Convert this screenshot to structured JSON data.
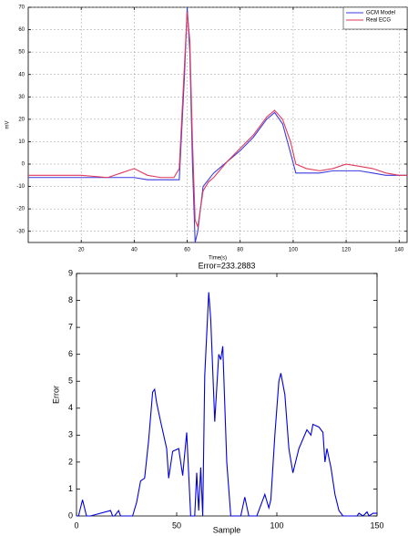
{
  "chart_data": [
    {
      "type": "line",
      "xlabel": "Time(s)",
      "ylabel": "mV",
      "x": [
        0,
        10,
        20,
        30,
        35,
        40,
        45,
        50,
        55,
        57,
        59,
        60,
        61,
        62,
        63,
        64,
        66,
        68,
        70,
        75,
        80,
        85,
        90,
        93,
        96,
        99,
        101,
        105,
        110,
        115,
        120,
        125,
        130,
        135,
        140,
        143
      ],
      "series": [
        {
          "name": "GCM Model",
          "color": "#3a3ae0",
          "values": [
            -6,
            -6,
            -6,
            -6,
            -6,
            -6,
            -7,
            -7,
            -7,
            -7,
            40,
            70,
            50,
            0,
            -35,
            -30,
            -10,
            -7,
            -4,
            1,
            6,
            12,
            20,
            23,
            18,
            5,
            -4,
            -4,
            -4,
            -3,
            -3,
            -3,
            -4,
            -5,
            -5,
            -5
          ]
        },
        {
          "name": "Real ECG",
          "color": "#e03a5a",
          "values": [
            -5,
            -5,
            -5,
            -6,
            -4,
            -2,
            -5,
            -6,
            -6,
            -2,
            45,
            68,
            55,
            10,
            -25,
            -28,
            -12,
            -8,
            -6,
            1,
            7,
            13,
            21,
            24,
            20,
            10,
            0,
            -2,
            -3,
            -2,
            0,
            -1,
            -2,
            -4,
            -5,
            -5
          ]
        }
      ],
      "xlim": [
        0,
        143
      ],
      "ylim": [
        -35,
        70
      ],
      "xticks": [
        20,
        40,
        60,
        80,
        100,
        120,
        140
      ],
      "yticks": [
        -30,
        -20,
        -10,
        0,
        10,
        20,
        30,
        40,
        50,
        60,
        70
      ],
      "grid": true,
      "legend": "upper-right"
    },
    {
      "type": "line",
      "title": "Error=233.2883",
      "xlabel": "Sample",
      "ylabel": "Error",
      "color": "#0000dd",
      "x": [
        0,
        1,
        3,
        5,
        7,
        17,
        18,
        19,
        21,
        22,
        28,
        30,
        32,
        34,
        36,
        38,
        39,
        40,
        42,
        45,
        46,
        48,
        51,
        53,
        55,
        57,
        59,
        60,
        61,
        62,
        63,
        64,
        66,
        67,
        69,
        71,
        72,
        73,
        75,
        77,
        82,
        84,
        86,
        90,
        92,
        94,
        96,
        97,
        99,
        101,
        102,
        104,
        106,
        108,
        111,
        115,
        117,
        118,
        121,
        123,
        124,
        125,
        127,
        129,
        131,
        133,
        140,
        141,
        143,
        145,
        146,
        148,
        150
      ],
      "values": [
        0,
        0,
        0.6,
        0,
        0,
        0.2,
        0,
        0,
        0.2,
        0,
        0,
        0.5,
        1.3,
        1.4,
        2.8,
        4.6,
        4.7,
        4.2,
        3.5,
        2.5,
        1.4,
        2.4,
        2.5,
        1.5,
        3.1,
        0,
        0,
        1.6,
        0.2,
        1.8,
        0,
        5.2,
        8.3,
        7.3,
        3.5,
        6,
        5.8,
        6.3,
        2,
        0,
        0,
        0.7,
        0,
        0,
        0.4,
        0.8,
        0.3,
        0.6,
        3,
        5,
        5.3,
        4.5,
        2.5,
        1.6,
        2.5,
        3.2,
        3,
        3.4,
        3.3,
        3.1,
        2,
        2.5,
        1.8,
        0.8,
        0.2,
        0,
        0,
        0.1,
        0,
        0.15,
        0,
        0.1,
        0.1
      ],
      "xlim": [
        0,
        150
      ],
      "ylim": [
        0,
        9
      ],
      "xticks": [
        0,
        50,
        100,
        150
      ],
      "yticks": [
        0,
        1,
        2,
        3,
        4,
        5,
        6,
        7,
        8,
        9
      ],
      "grid": false
    }
  ]
}
